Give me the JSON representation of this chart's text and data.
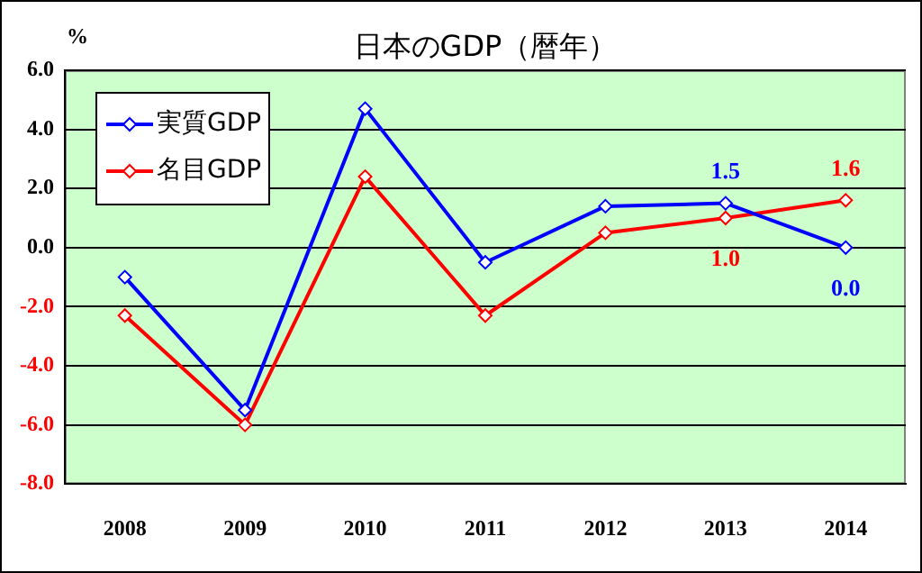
{
  "chart_data": {
    "type": "line",
    "title": "日本のGDP（暦年）",
    "ylabel": "%",
    "categories": [
      "2008",
      "2009",
      "2010",
      "2011",
      "2012",
      "2013",
      "2014"
    ],
    "series": [
      {
        "name": "実質GDP",
        "color": "#0000ff",
        "values": [
          -1.0,
          -5.5,
          4.7,
          -0.5,
          1.4,
          1.5,
          0.0
        ],
        "value_labels": [
          null,
          null,
          null,
          null,
          null,
          "1.5",
          "0.0"
        ]
      },
      {
        "name": "名目GDP",
        "color": "#ff0000",
        "values": [
          -2.3,
          -6.0,
          2.4,
          -2.3,
          0.5,
          1.0,
          1.6
        ],
        "value_labels": [
          null,
          null,
          null,
          null,
          null,
          "1.0",
          "1.6"
        ]
      }
    ],
    "ylim": [
      -8,
      6
    ],
    "yticks": [
      {
        "value": -8,
        "label": "-8.0"
      },
      {
        "value": -6,
        "label": "-6.0"
      },
      {
        "value": -4,
        "label": "-4.0"
      },
      {
        "value": -2,
        "label": "-2.0"
      },
      {
        "value": 0,
        "label": "0.0"
      },
      {
        "value": 2,
        "label": "2.0"
      },
      {
        "value": 4,
        "label": "4.0"
      },
      {
        "value": 6,
        "label": "6.0"
      }
    ],
    "grid": "y",
    "legend": "top left",
    "marker": "diamond",
    "line_style": "solid"
  }
}
